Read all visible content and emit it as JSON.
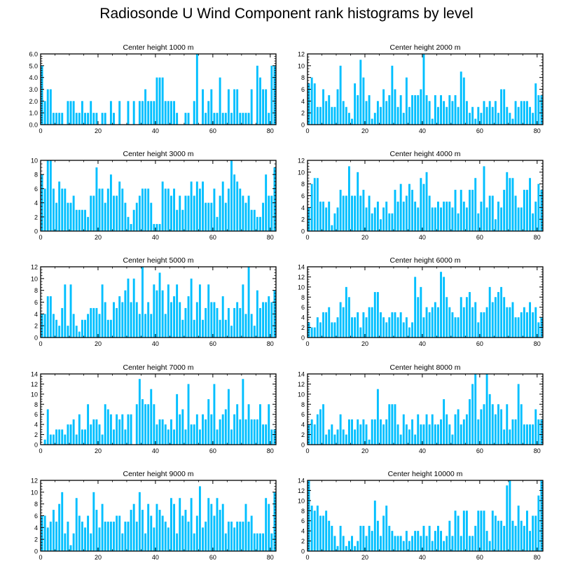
{
  "title": "Radiosonde U Wind Component rank histograms by level",
  "bar_color": "#00bfff",
  "axis_color": "#000000",
  "chart_data": [
    {
      "type": "bar",
      "title": "Center height 1000 m",
      "xlim": [
        0,
        82
      ],
      "ylim": [
        0,
        6
      ],
      "yticks": [
        0,
        1,
        2,
        3,
        4,
        5,
        6
      ],
      "ytick_labels": [
        "0.0",
        "1.0",
        "2.0",
        "3.0",
        "4.0",
        "5.0",
        "6.0"
      ],
      "xticks": [
        0,
        20,
        40,
        60,
        80
      ],
      "values": [
        5,
        2,
        3,
        3,
        1,
        1,
        1,
        1,
        0,
        2,
        2,
        2,
        1,
        1,
        2,
        1,
        1,
        2,
        1,
        1,
        0,
        1,
        1,
        0,
        2,
        1,
        0,
        2,
        0,
        0,
        2,
        0,
        2,
        0,
        2,
        2,
        3,
        2,
        2,
        2,
        4,
        4,
        4,
        2,
        2,
        2,
        2,
        1,
        0,
        0,
        1,
        1,
        0,
        2,
        6,
        0,
        3,
        1,
        2,
        3,
        1,
        1,
        4,
        1,
        1,
        3,
        1,
        3,
        3,
        1,
        1,
        1,
        1,
        3,
        0,
        5,
        4,
        3,
        3,
        1,
        5,
        5
      ]
    },
    {
      "type": "bar",
      "title": "Center height 2000 m",
      "xlim": [
        0,
        82
      ],
      "ylim": [
        0,
        12
      ],
      "yticks": [
        0,
        2,
        4,
        6,
        8,
        10,
        12
      ],
      "ytick_labels": [
        "0",
        "2",
        "4",
        "6",
        "8",
        "10",
        "12"
      ],
      "xticks": [
        0,
        20,
        40,
        60,
        80
      ],
      "values": [
        7,
        8,
        7,
        3,
        3,
        6,
        4,
        5,
        3,
        3,
        6,
        10,
        4,
        3,
        2,
        1,
        7,
        5,
        11,
        8,
        4,
        5,
        1,
        2,
        4,
        3,
        6,
        4,
        5,
        10,
        6,
        3,
        5,
        2,
        8,
        3,
        5,
        5,
        5,
        6,
        12,
        5,
        4,
        1,
        5,
        3,
        5,
        4,
        3,
        5,
        4,
        5,
        3,
        9,
        8,
        4,
        2,
        3,
        1,
        3,
        2,
        4,
        3,
        4,
        3,
        4,
        2,
        6,
        6,
        3,
        2,
        1,
        4,
        3,
        4,
        4,
        4,
        3,
        2,
        7,
        5,
        5
      ]
    },
    {
      "type": "bar",
      "title": "Center height 3000 m",
      "xlim": [
        0,
        82
      ],
      "ylim": [
        0,
        10
      ],
      "yticks": [
        0,
        2,
        4,
        6,
        8,
        10
      ],
      "ytick_labels": [
        "0",
        "2",
        "4",
        "6",
        "8",
        "10"
      ],
      "xticks": [
        0,
        20,
        40,
        60,
        80
      ],
      "values": [
        8,
        6,
        10,
        10,
        6,
        4,
        7,
        6,
        6,
        4,
        4,
        5,
        3,
        3,
        3,
        3,
        2,
        5,
        5,
        9,
        6,
        6,
        4,
        6,
        8,
        5,
        5,
        7,
        6,
        4,
        2,
        1,
        3,
        4,
        5,
        6,
        6,
        6,
        4,
        1,
        1,
        1,
        7,
        6,
        6,
        5,
        6,
        3,
        5,
        3,
        5,
        5,
        7,
        5,
        7,
        6,
        7,
        4,
        4,
        4,
        6,
        2,
        5,
        7,
        4,
        6,
        10,
        8,
        7,
        6,
        5,
        4,
        5,
        3,
        3,
        2,
        2,
        4,
        8,
        5,
        5,
        9
      ]
    },
    {
      "type": "bar",
      "title": "Center height 4000 m",
      "xlim": [
        0,
        82
      ],
      "ylim": [
        0,
        12
      ],
      "yticks": [
        0,
        2,
        4,
        6,
        8,
        10,
        12
      ],
      "ytick_labels": [
        "0",
        "2",
        "4",
        "6",
        "8",
        "10",
        "12"
      ],
      "xticks": [
        0,
        20,
        40,
        60,
        80
      ],
      "values": [
        4,
        8,
        9,
        9,
        5,
        5,
        4,
        5,
        1,
        3,
        4,
        7,
        6,
        6,
        11,
        6,
        6,
        10,
        6,
        7,
        4,
        6,
        3,
        4,
        5,
        2,
        4,
        5,
        3,
        3,
        7,
        5,
        8,
        5,
        6,
        8,
        7,
        5,
        4,
        9,
        8,
        10,
        6,
        4,
        4,
        5,
        4,
        5,
        5,
        5,
        4,
        7,
        3,
        7,
        5,
        4,
        7,
        7,
        9,
        3,
        5,
        11,
        4,
        6,
        6,
        2,
        5,
        4,
        7,
        10,
        9,
        9,
        6,
        4,
        4,
        7,
        7,
        9,
        3,
        5,
        8,
        7
      ]
    },
    {
      "type": "bar",
      "title": "Center height 5000 m",
      "xlim": [
        0,
        82
      ],
      "ylim": [
        0,
        12
      ],
      "yticks": [
        0,
        2,
        4,
        6,
        8,
        10,
        12
      ],
      "ytick_labels": [
        "0",
        "2",
        "4",
        "6",
        "8",
        "10",
        "12"
      ],
      "xticks": [
        0,
        20,
        40,
        60,
        80
      ],
      "values": [
        4,
        4,
        7,
        7,
        4,
        3,
        2,
        5,
        9,
        2,
        9,
        4,
        2,
        1,
        3,
        3,
        4,
        5,
        5,
        5,
        4,
        9,
        6,
        3,
        3,
        6,
        5,
        7,
        6,
        8,
        10,
        6,
        10,
        6,
        4,
        12,
        4,
        6,
        4,
        9,
        8,
        11,
        8,
        4,
        9,
        6,
        7,
        9,
        6,
        3,
        5,
        7,
        10,
        3,
        6,
        9,
        3,
        5,
        9,
        6,
        6,
        5,
        3,
        7,
        3,
        5,
        2,
        5,
        6,
        5,
        9,
        4,
        12,
        4,
        2,
        8,
        5,
        6,
        6,
        7,
        6,
        8
      ]
    },
    {
      "type": "bar",
      "title": "Center height 6000 m",
      "xlim": [
        0,
        82
      ],
      "ylim": [
        0,
        14
      ],
      "yticks": [
        0,
        2,
        4,
        6,
        8,
        10,
        12,
        14
      ],
      "ytick_labels": [
        "0",
        "2",
        "4",
        "6",
        "8",
        "10",
        "12",
        "14"
      ],
      "xticks": [
        0,
        20,
        40,
        60,
        80
      ],
      "values": [
        3,
        2,
        2,
        4,
        3,
        5,
        5,
        6,
        3,
        3,
        4,
        7,
        6,
        10,
        8,
        4,
        4,
        5,
        2,
        5,
        4,
        6,
        6,
        9,
        9,
        5,
        4,
        3,
        4,
        5,
        5,
        4,
        5,
        3,
        4,
        2,
        3,
        12,
        8,
        10,
        4,
        6,
        5,
        6,
        7,
        6,
        13,
        12,
        8,
        6,
        5,
        4,
        4,
        8,
        6,
        8,
        9,
        6,
        7,
        3,
        5,
        5,
        6,
        10,
        7,
        8,
        9,
        10,
        8,
        6,
        6,
        7,
        4,
        4,
        5,
        6,
        5,
        7,
        5,
        6,
        3,
        4
      ]
    },
    {
      "type": "bar",
      "title": "Center height 7000 m",
      "xlim": [
        0,
        82
      ],
      "ylim": [
        0,
        14
      ],
      "yticks": [
        0,
        2,
        4,
        6,
        8,
        10,
        12,
        14
      ],
      "ytick_labels": [
        "0",
        "2",
        "4",
        "6",
        "8",
        "10",
        "12",
        "14"
      ],
      "xticks": [
        0,
        20,
        40,
        60,
        80
      ],
      "values": [
        0,
        1,
        7,
        2,
        2,
        3,
        3,
        3,
        2,
        4,
        4,
        5,
        2,
        6,
        3,
        3,
        8,
        4,
        5,
        5,
        4,
        2,
        8,
        7,
        6,
        3,
        6,
        5,
        6,
        3,
        6,
        6,
        0,
        8,
        13,
        9,
        8,
        8,
        11,
        8,
        4,
        5,
        5,
        4,
        3,
        5,
        3,
        10,
        6,
        7,
        3,
        12,
        4,
        4,
        6,
        3,
        6,
        5,
        9,
        6,
        12,
        3,
        5,
        6,
        7,
        11,
        3,
        6,
        8,
        5,
        13,
        5,
        8,
        5,
        5,
        5,
        8,
        4,
        4,
        8,
        3,
        3
      ]
    },
    {
      "type": "bar",
      "title": "Center height 8000 m",
      "xlim": [
        0,
        82
      ],
      "ylim": [
        0,
        14
      ],
      "yticks": [
        0,
        2,
        4,
        6,
        8,
        10,
        12,
        14
      ],
      "ytick_labels": [
        "0",
        "2",
        "4",
        "6",
        "8",
        "10",
        "12",
        "14"
      ],
      "xticks": [
        0,
        20,
        40,
        60,
        80
      ],
      "values": [
        4,
        5,
        4,
        6,
        7,
        8,
        2,
        3,
        4,
        2,
        3,
        6,
        3,
        2,
        5,
        5,
        3,
        5,
        4,
        5,
        4,
        1,
        5,
        5,
        11,
        5,
        4,
        5,
        8,
        8,
        8,
        4,
        2,
        6,
        4,
        3,
        5,
        2,
        6,
        4,
        4,
        6,
        4,
        6,
        4,
        4,
        5,
        9,
        6,
        4,
        2,
        6,
        7,
        4,
        5,
        6,
        9,
        12,
        14,
        5,
        7,
        8,
        14,
        10,
        8,
        6,
        8,
        7,
        3,
        8,
        3,
        5,
        5,
        12,
        8,
        4,
        4,
        4,
        4,
        7,
        5,
        5
      ]
    },
    {
      "type": "bar",
      "title": "Center height 9000 m",
      "xlim": [
        0,
        82
      ],
      "ylim": [
        0,
        12
      ],
      "yticks": [
        0,
        2,
        4,
        6,
        8,
        10,
        12
      ],
      "ytick_labels": [
        "0",
        "2",
        "4",
        "6",
        "8",
        "10",
        "12"
      ],
      "xticks": [
        0,
        20,
        40,
        60,
        80
      ],
      "values": [
        6,
        6,
        4,
        5,
        7,
        5,
        8,
        10,
        3,
        5,
        1,
        3,
        9,
        6,
        5,
        4,
        6,
        3,
        10,
        7,
        4,
        8,
        5,
        5,
        5,
        5,
        6,
        6,
        3,
        5,
        5,
        7,
        8,
        5,
        10,
        7,
        3,
        8,
        6,
        4,
        8,
        7,
        6,
        5,
        4,
        9,
        8,
        3,
        9,
        6,
        7,
        5,
        9,
        3,
        6,
        11,
        4,
        5,
        9,
        8,
        6,
        9,
        7,
        8,
        3,
        5,
        5,
        4,
        5,
        5,
        5,
        8,
        5,
        6,
        3,
        3,
        3,
        3,
        9,
        8,
        3,
        10
      ]
    },
    {
      "type": "bar",
      "title": "Center height 10000 m",
      "xlim": [
        0,
        82
      ],
      "ylim": [
        0,
        14
      ],
      "yticks": [
        0,
        2,
        4,
        6,
        8,
        10,
        12,
        14
      ],
      "ytick_labels": [
        "0",
        "2",
        "4",
        "6",
        "8",
        "10",
        "12",
        "14"
      ],
      "xticks": [
        0,
        20,
        40,
        60,
        80
      ],
      "values": [
        14,
        9,
        8,
        9,
        7,
        7,
        8,
        6,
        5,
        3,
        1,
        5,
        3,
        1,
        2,
        3,
        1,
        2,
        5,
        5,
        3,
        5,
        4,
        10,
        6,
        3,
        7,
        9,
        5,
        4,
        3,
        3,
        3,
        2,
        4,
        2,
        3,
        4,
        4,
        3,
        5,
        3,
        5,
        2,
        4,
        5,
        4,
        2,
        3,
        6,
        3,
        8,
        7,
        3,
        8,
        8,
        3,
        3,
        5,
        8,
        8,
        8,
        4,
        2,
        8,
        7,
        6,
        6,
        5,
        13,
        14,
        6,
        5,
        9,
        6,
        5,
        8,
        4,
        7,
        7,
        11,
        14
      ]
    }
  ]
}
